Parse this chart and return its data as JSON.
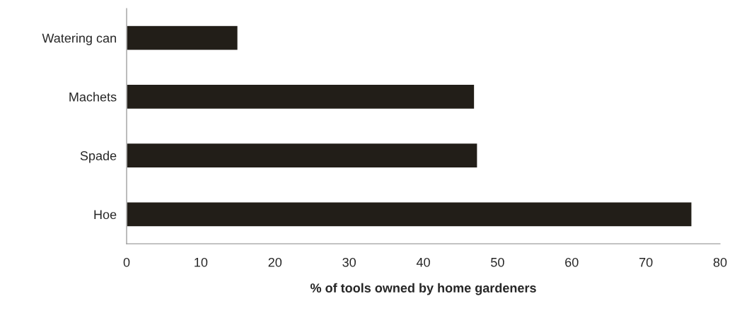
{
  "chart_data": {
    "type": "bar",
    "orientation": "horizontal",
    "xlabel": "% of tools owned by home gardeners",
    "categories": [
      "Watering can",
      "Machets",
      "Spade",
      "Hoe"
    ],
    "values": [
      15,
      46.9,
      47.3,
      76.2
    ],
    "color": "#221e18",
    "xlim": [
      0,
      80
    ],
    "xticks": [
      0,
      10,
      20,
      30,
      40,
      50,
      60,
      70,
      80
    ],
    "grid": false,
    "legend": false
  }
}
